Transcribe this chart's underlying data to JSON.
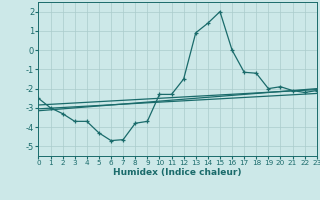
{
  "title": "",
  "xlabel": "Humidex (Indice chaleur)",
  "bg_color": "#cce8e8",
  "grid_color": "#aacccc",
  "line_color": "#1a6b6b",
  "x_ticks": [
    0,
    1,
    2,
    3,
    4,
    5,
    6,
    7,
    8,
    9,
    10,
    11,
    12,
    13,
    14,
    15,
    16,
    17,
    18,
    19,
    20,
    21,
    22,
    23
  ],
  "y_ticks": [
    -5,
    -4,
    -3,
    -2,
    -1,
    0,
    1,
    2
  ],
  "xlim": [
    0,
    23
  ],
  "ylim": [
    -5.5,
    2.5
  ],
  "main_series": {
    "x": [
      0,
      1,
      2,
      3,
      4,
      5,
      6,
      7,
      8,
      9,
      10,
      11,
      12,
      13,
      14,
      15,
      16,
      17,
      18,
      19,
      20,
      21,
      22,
      23
    ],
    "y": [
      -2.5,
      -3.0,
      -3.3,
      -3.7,
      -3.7,
      -4.3,
      -4.7,
      -4.65,
      -3.8,
      -3.7,
      -2.3,
      -2.3,
      -1.5,
      0.9,
      1.4,
      2.0,
      0.0,
      -1.15,
      -1.2,
      -2.0,
      -1.9,
      -2.1,
      -2.2,
      -2.1
    ]
  },
  "regression_lines": [
    {
      "x0": 0,
      "x1": 23,
      "y0": -2.85,
      "y1": -2.05
    },
    {
      "x0": 0,
      "x1": 23,
      "y0": -3.05,
      "y1": -2.25
    },
    {
      "x0": 0,
      "x1": 23,
      "y0": -3.15,
      "y1": -2.0
    }
  ]
}
